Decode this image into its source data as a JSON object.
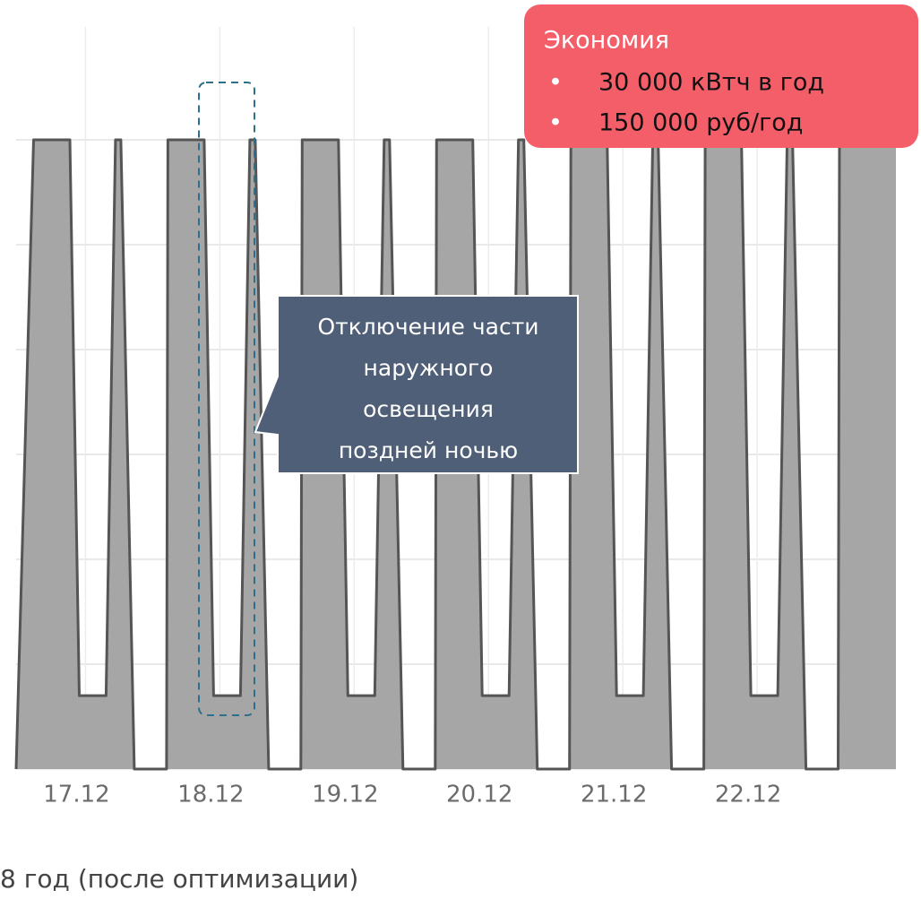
{
  "chart_data": {
    "type": "area",
    "categories": [
      "17.12",
      "18.12",
      "19.12",
      "20.12",
      "21.12",
      "22.12"
    ],
    "x": [
      -0.45,
      -0.32,
      -0.05,
      0.02,
      0.22,
      0.29,
      0.33,
      0.43,
      0.67,
      0.68,
      0.95,
      1.02,
      1.22,
      1.29,
      1.33,
      1.43,
      1.67,
      1.68,
      1.95,
      2.02,
      2.22,
      2.29,
      2.33,
      2.43,
      2.67,
      2.68,
      2.95,
      3.02,
      3.22,
      3.29,
      3.33,
      3.43,
      3.67,
      3.68,
      3.95,
      4.02,
      4.22,
      4.29,
      4.33,
      4.43,
      4.67,
      4.68,
      4.95,
      5.02,
      5.22,
      5.29,
      5.33,
      5.43,
      5.67,
      5.68,
      6.1
    ],
    "values": [
      0,
      6,
      6,
      0.7,
      0.7,
      6,
      6,
      0,
      0,
      6,
      6,
      0.7,
      0.7,
      6,
      6,
      0,
      0,
      6,
      6,
      0.7,
      0.7,
      6,
      6,
      0,
      0,
      6,
      6,
      0.7,
      0.7,
      6,
      6,
      0,
      0,
      6,
      6,
      0.7,
      0.7,
      6,
      6,
      0,
      0,
      6,
      6,
      0.7,
      0.7,
      6,
      6,
      0,
      0,
      6,
      6
    ],
    "color": "#a6a6a6",
    "xlim": [
      -0.45,
      6.1
    ],
    "ylim": [
      0,
      6
    ],
    "yticks": [
      0,
      1,
      2,
      3,
      4,
      5,
      6
    ],
    "grid": true
  },
  "savings": {
    "title": "Экономия",
    "items": [
      "30 000 кВтч в год",
      "150 000 руб/год"
    ]
  },
  "callout": {
    "lines": [
      "Отключение части",
      "наружного",
      "освещения",
      "поздней ночью"
    ]
  },
  "caption": "8 год (после оптимизации)"
}
